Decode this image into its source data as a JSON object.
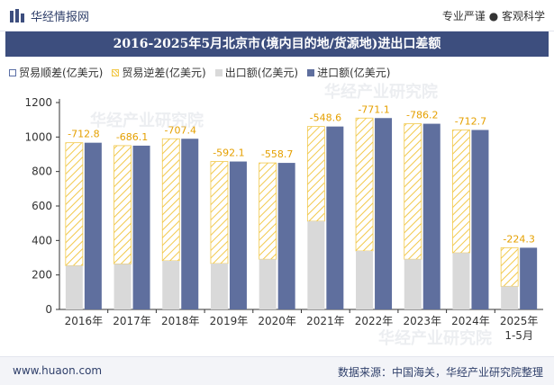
{
  "header": {
    "brand": "华经情报网",
    "tagline": "专业严谨 ● 客观科学"
  },
  "title": "2016-2025年5月北京市(境内目的地/货源地)进出口差额",
  "legend": {
    "trade_surplus": "贸易顺差(亿美元)",
    "trade_deficit": "贸易逆差(亿美元)",
    "export": "出口额(亿美元)",
    "import": "进口额(亿美元)"
  },
  "footer": {
    "website": "www.huaon.com",
    "source": "数据来源：中国海关，华经产业研究院整理"
  },
  "watermarks": [
    "华经产业研究院",
    "华经产业研究院",
    "华经产业研究院"
  ],
  "colors": {
    "import": "#5f6f9e",
    "export": "#d9d9d9",
    "deficit": "#f2c94c",
    "label": "#e5a000",
    "axis": "#333333"
  },
  "chart_data": {
    "type": "bar",
    "title": "2016-2025年5月北京市(境内目的地/货源地)进出口差额",
    "categories": [
      "2016年",
      "2017年",
      "2018年",
      "2019年",
      "2020年",
      "2021年",
      "2022年",
      "2023年",
      "2024年",
      "2025年"
    ],
    "category_sublabels": [
      "",
      "",
      "",
      "",
      "",
      "",
      "",
      "",
      "",
      "1-5月"
    ],
    "ylim": [
      0,
      1200
    ],
    "yticks": [
      0,
      200,
      400,
      600,
      800,
      1000,
      1200
    ],
    "series": [
      {
        "name": "出口额(亿美元)",
        "values": [
          254,
          264,
          282,
          266,
          291,
          512,
          339,
          291,
          328,
          134
        ]
      },
      {
        "name": "进口额(亿美元)",
        "values": [
          967,
          950,
          990,
          858,
          850,
          1061,
          1110,
          1077,
          1041,
          358
        ]
      },
      {
        "name": "贸易逆差(亿美元)",
        "values": [
          -712.8,
          -686.1,
          -707.4,
          -592.1,
          -558.7,
          -548.6,
          -771.1,
          -786.2,
          -712.7,
          -224.3
        ]
      }
    ],
    "data_labels": [
      "-712.8",
      "-686.1",
      "-707.4",
      "-592.1",
      "-558.7",
      "-548.6",
      "-771.1",
      "-786.2",
      "-712.7",
      "-224.3"
    ]
  }
}
